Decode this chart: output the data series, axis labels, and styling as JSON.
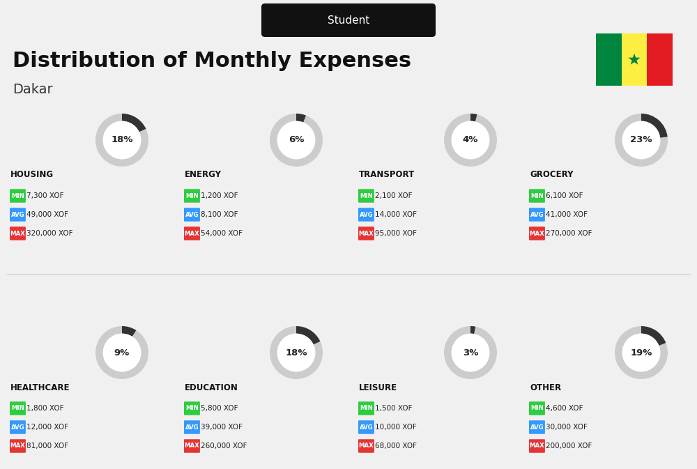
{
  "title": "Distribution of Monthly Expenses",
  "subtitle": "Student",
  "city": "Dakar",
  "bg_color": "#f0f0f0",
  "categories": [
    {
      "name": "HOUSING",
      "pct": 18,
      "min_val": "7,300 XOF",
      "avg_val": "49,000 XOF",
      "max_val": "320,000 XOF",
      "row": 0,
      "col": 0
    },
    {
      "name": "ENERGY",
      "pct": 6,
      "min_val": "1,200 XOF",
      "avg_val": "8,100 XOF",
      "max_val": "54,000 XOF",
      "row": 0,
      "col": 1
    },
    {
      "name": "TRANSPORT",
      "pct": 4,
      "min_val": "2,100 XOF",
      "avg_val": "14,000 XOF",
      "max_val": "95,000 XOF",
      "row": 0,
      "col": 2
    },
    {
      "name": "GROCERY",
      "pct": 23,
      "min_val": "6,100 XOF",
      "avg_val": "41,000 XOF",
      "max_val": "270,000 XOF",
      "row": 0,
      "col": 3
    },
    {
      "name": "HEALTHCARE",
      "pct": 9,
      "min_val": "1,800 XOF",
      "avg_val": "12,000 XOF",
      "max_val": "81,000 XOF",
      "row": 1,
      "col": 0
    },
    {
      "name": "EDUCATION",
      "pct": 18,
      "min_val": "5,800 XOF",
      "avg_val": "39,000 XOF",
      "max_val": "260,000 XOF",
      "row": 1,
      "col": 1
    },
    {
      "name": "LEISURE",
      "pct": 3,
      "min_val": "1,500 XOF",
      "avg_val": "10,000 XOF",
      "max_val": "68,000 XOF",
      "row": 1,
      "col": 2
    },
    {
      "name": "OTHER",
      "pct": 19,
      "min_val": "4,600 XOF",
      "avg_val": "30,000 XOF",
      "max_val": "200,000 XOF",
      "row": 1,
      "col": 3
    }
  ],
  "min_color": "#2ecc40",
  "avg_color": "#3399ff",
  "max_color": "#e63333",
  "label_color": "#ffffff",
  "category_color": "#111111",
  "pct_color": "#222222",
  "arc_color": "#333333",
  "arc_bg_color": "#cccccc",
  "senegal_green": "#00853F",
  "senegal_yellow": "#FDEF42",
  "senegal_red": "#E31B23"
}
